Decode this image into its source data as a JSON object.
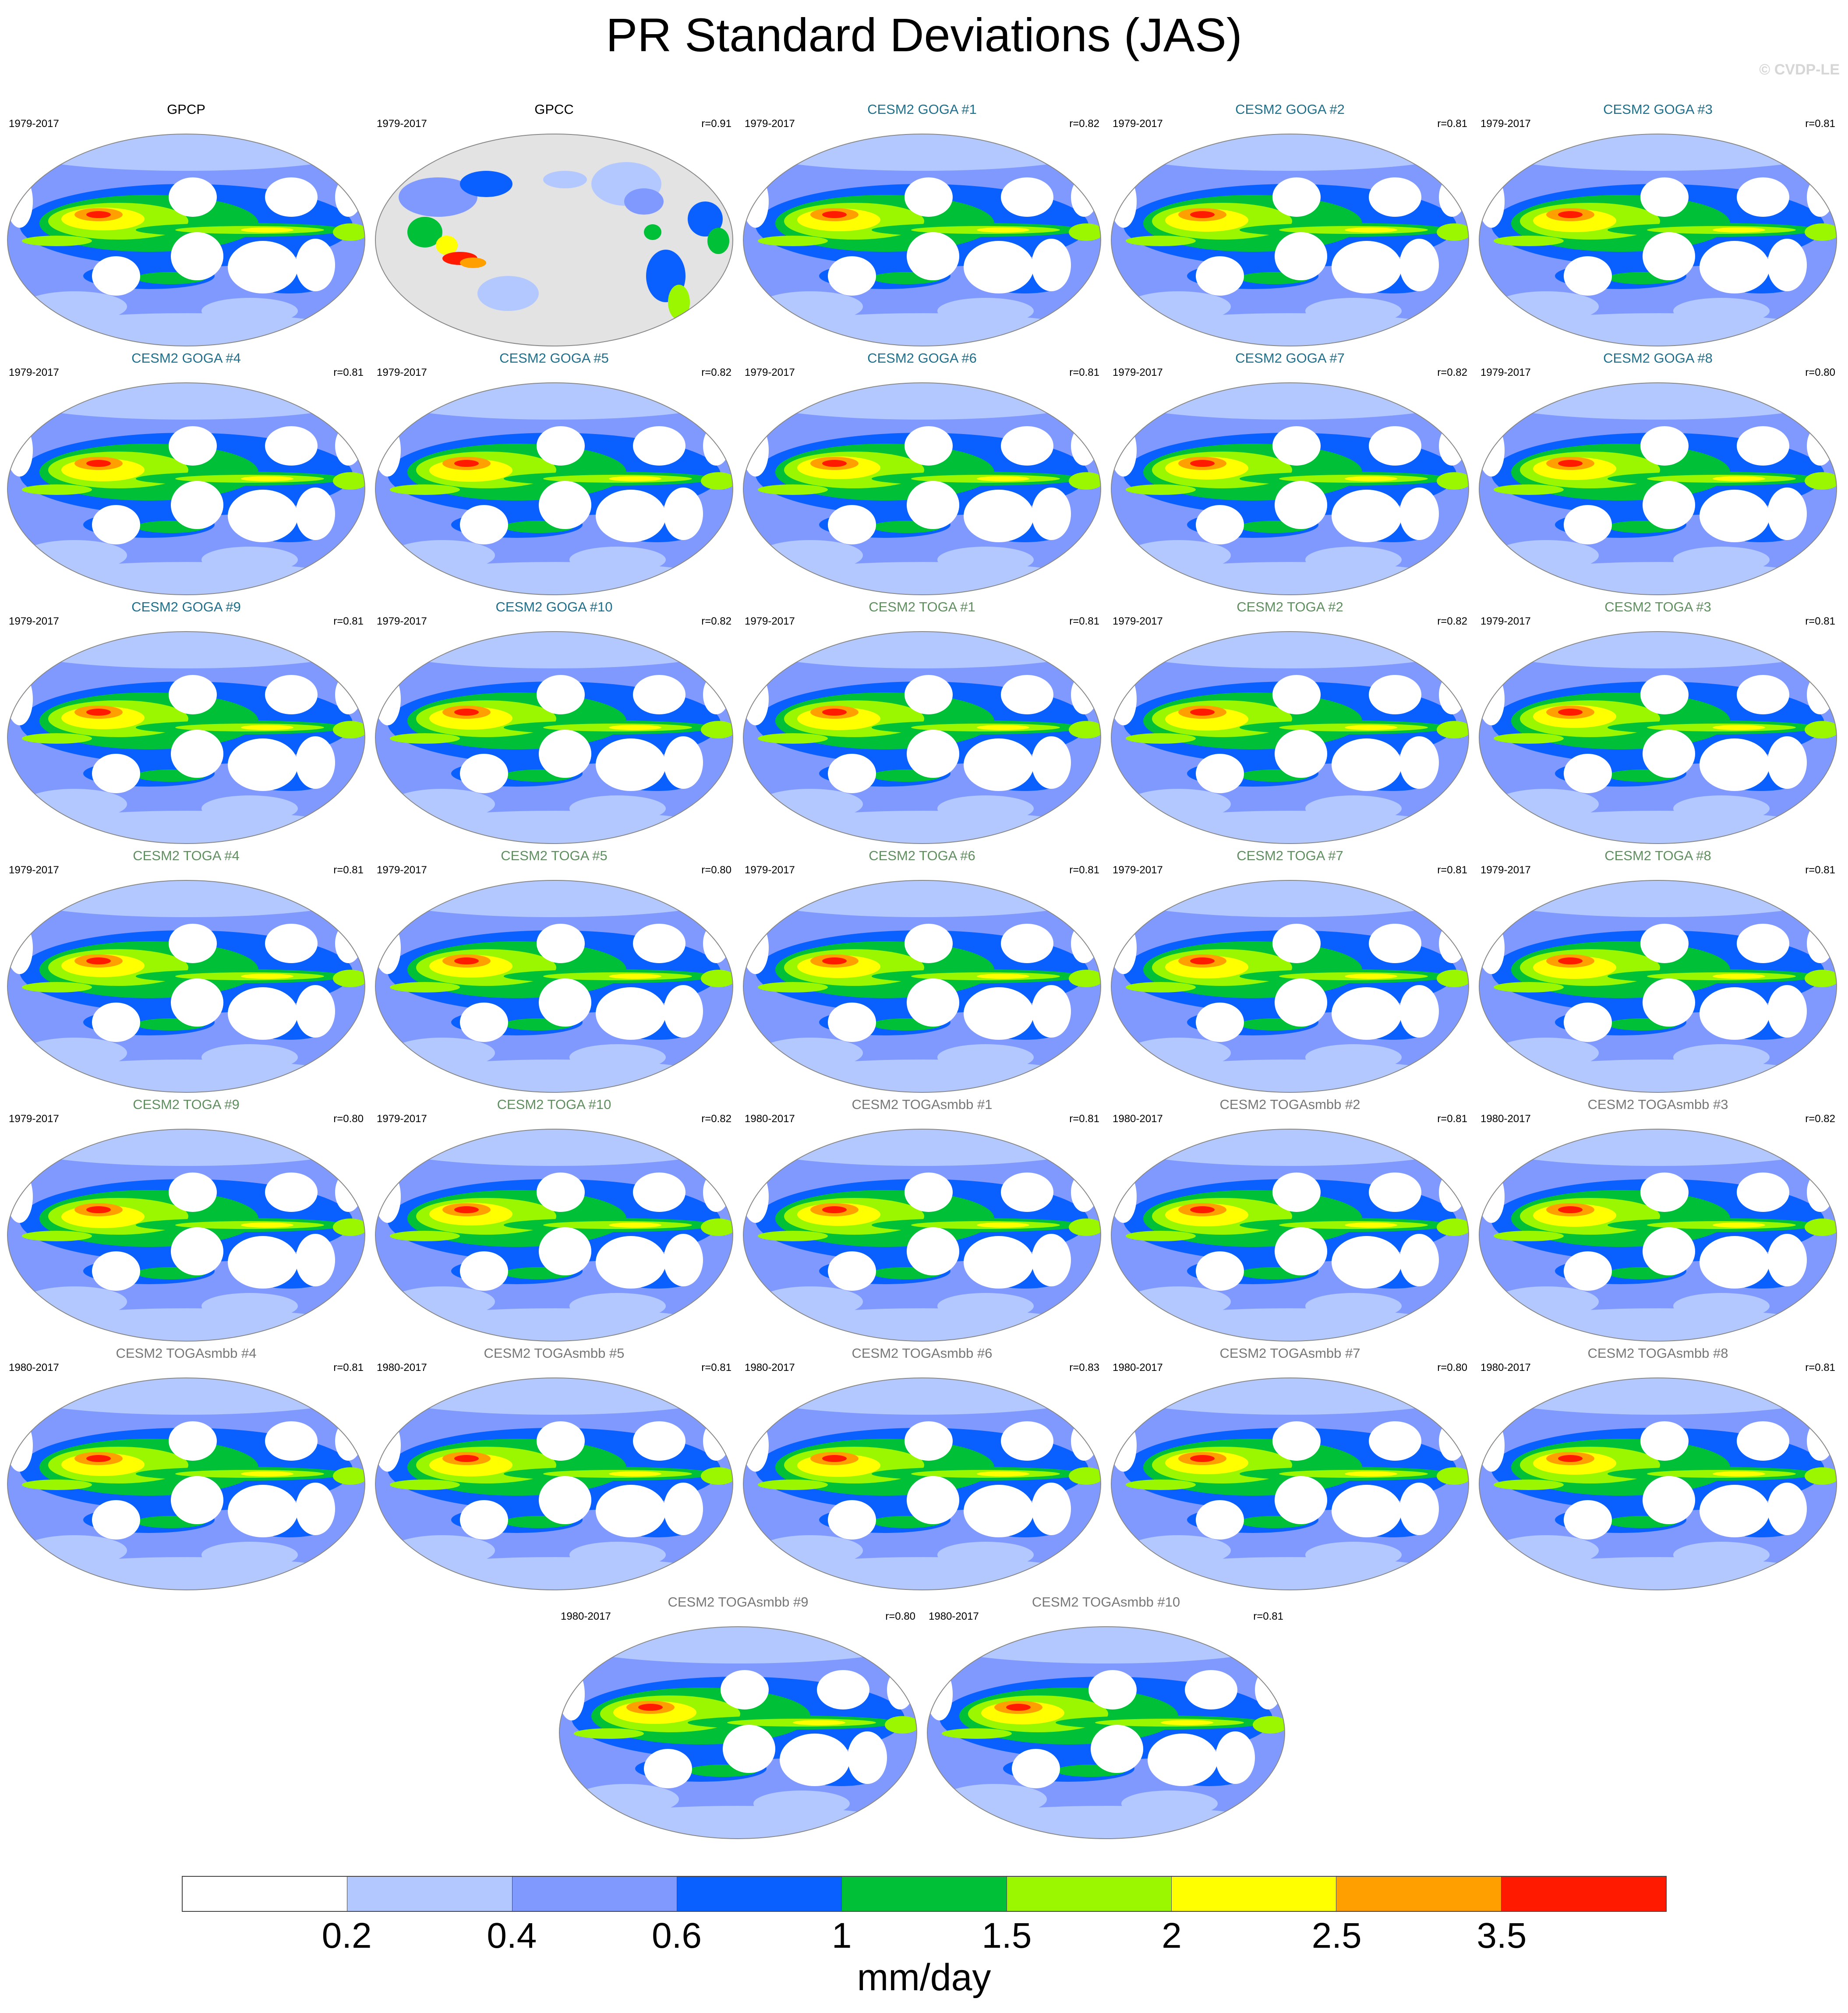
{
  "title": "PR Standard Deviations (JAS)",
  "copyright": "© CVDP-LE",
  "colors": {
    "goga_title": "#1f6f8b",
    "toga_title": "#5f8f5f",
    "togasmbb_title": "#777777",
    "obs_title": "#000000",
    "missing_land": "#e3e3e3",
    "levels": [
      "#ffffff",
      "#b3c8ff",
      "#7f99ff",
      "#0a5fff",
      "#00c038",
      "#9af700",
      "#ffff00",
      "#ffa000",
      "#ff1a00"
    ]
  },
  "colorbar": {
    "labels": [
      "0.2",
      "0.4",
      "0.6",
      "1",
      "1.5",
      "2",
      "2.5",
      "3.5"
    ],
    "units": "mm/day"
  },
  "panels": [
    {
      "title": "GPCP",
      "years": "1979-2017",
      "corr": "",
      "group": "obs"
    },
    {
      "title": "GPCC",
      "years": "1979-2017",
      "corr": "r=0.91",
      "group": "obs"
    },
    {
      "title": "CESM2 GOGA #1",
      "years": "1979-2017",
      "corr": "r=0.82",
      "group": "goga"
    },
    {
      "title": "CESM2 GOGA #2",
      "years": "1979-2017",
      "corr": "r=0.81",
      "group": "goga"
    },
    {
      "title": "CESM2 GOGA #3",
      "years": "1979-2017",
      "corr": "r=0.81",
      "group": "goga"
    },
    {
      "title": "CESM2 GOGA #4",
      "years": "1979-2017",
      "corr": "r=0.81",
      "group": "goga"
    },
    {
      "title": "CESM2 GOGA #5",
      "years": "1979-2017",
      "corr": "r=0.82",
      "group": "goga"
    },
    {
      "title": "CESM2 GOGA #6",
      "years": "1979-2017",
      "corr": "r=0.81",
      "group": "goga"
    },
    {
      "title": "CESM2 GOGA #7",
      "years": "1979-2017",
      "corr": "r=0.82",
      "group": "goga"
    },
    {
      "title": "CESM2 GOGA #8",
      "years": "1979-2017",
      "corr": "r=0.80",
      "group": "goga"
    },
    {
      "title": "CESM2 GOGA #9",
      "years": "1979-2017",
      "corr": "r=0.81",
      "group": "goga"
    },
    {
      "title": "CESM2 GOGA #10",
      "years": "1979-2017",
      "corr": "r=0.82",
      "group": "goga"
    },
    {
      "title": "CESM2 TOGA #1",
      "years": "1979-2017",
      "corr": "r=0.81",
      "group": "toga"
    },
    {
      "title": "CESM2 TOGA #2",
      "years": "1979-2017",
      "corr": "r=0.82",
      "group": "toga"
    },
    {
      "title": "CESM2 TOGA #3",
      "years": "1979-2017",
      "corr": "r=0.81",
      "group": "toga"
    },
    {
      "title": "CESM2 TOGA #4",
      "years": "1979-2017",
      "corr": "r=0.81",
      "group": "toga"
    },
    {
      "title": "CESM2 TOGA #5",
      "years": "1979-2017",
      "corr": "r=0.80",
      "group": "toga"
    },
    {
      "title": "CESM2 TOGA #6",
      "years": "1979-2017",
      "corr": "r=0.81",
      "group": "toga"
    },
    {
      "title": "CESM2 TOGA #7",
      "years": "1979-2017",
      "corr": "r=0.81",
      "group": "toga"
    },
    {
      "title": "CESM2 TOGA #8",
      "years": "1979-2017",
      "corr": "r=0.81",
      "group": "toga"
    },
    {
      "title": "CESM2 TOGA #9",
      "years": "1979-2017",
      "corr": "r=0.80",
      "group": "toga"
    },
    {
      "title": "CESM2 TOGA #10",
      "years": "1979-2017",
      "corr": "r=0.82",
      "group": "toga"
    },
    {
      "title": "CESM2 TOGAsmbb #1",
      "years": "1980-2017",
      "corr": "r=0.81",
      "group": "togasmbb"
    },
    {
      "title": "CESM2 TOGAsmbb #2",
      "years": "1980-2017",
      "corr": "r=0.81",
      "group": "togasmbb"
    },
    {
      "title": "CESM2 TOGAsmbb #3",
      "years": "1980-2017",
      "corr": "r=0.82",
      "group": "togasmbb"
    },
    {
      "title": "CESM2 TOGAsmbb #4",
      "years": "1980-2017",
      "corr": "r=0.81",
      "group": "togasmbb"
    },
    {
      "title": "CESM2 TOGAsmbb #5",
      "years": "1980-2017",
      "corr": "r=0.81",
      "group": "togasmbb"
    },
    {
      "title": "CESM2 TOGAsmbb #6",
      "years": "1980-2017",
      "corr": "r=0.83",
      "group": "togasmbb"
    },
    {
      "title": "CESM2 TOGAsmbb #7",
      "years": "1980-2017",
      "corr": "r=0.80",
      "group": "togasmbb"
    },
    {
      "title": "CESM2 TOGAsmbb #8",
      "years": "1980-2017",
      "corr": "r=0.81",
      "group": "togasmbb"
    },
    {
      "title": "CESM2 TOGAsmbb #9",
      "years": "1980-2017",
      "corr": "r=0.80",
      "group": "togasmbb"
    },
    {
      "title": "CESM2 TOGAsmbb #10",
      "years": "1980-2017",
      "corr": "r=0.81",
      "group": "togasmbb"
    }
  ]
}
